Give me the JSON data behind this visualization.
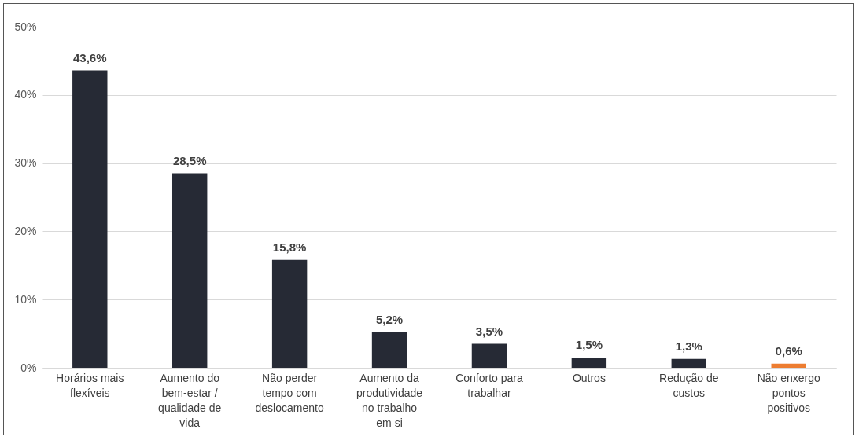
{
  "chart_data": {
    "type": "bar",
    "categories": [
      "Horários mais flexíveis",
      "Aumento do bem-estar / qualidade de vida",
      "Não perder tempo com deslocamento",
      "Aumento da produtividade no trabalho em si",
      "Conforto para trabalhar",
      "Outros",
      "Redução de custos",
      "Não enxergo pontos positivos"
    ],
    "values": [
      43.6,
      28.5,
      15.8,
      5.2,
      3.5,
      1.5,
      1.3,
      0.6
    ],
    "value_labels": [
      "43,6%",
      "28,5%",
      "15,8%",
      "5,2%",
      "3,5%",
      "1,5%",
      "1,3%",
      "0,6%"
    ],
    "colors": [
      "#262a35",
      "#262a35",
      "#262a35",
      "#262a35",
      "#262a35",
      "#262a35",
      "#262a35",
      "#ed7d31"
    ],
    "ylim": [
      0,
      50
    ],
    "yticks": [
      {
        "value": 0,
        "label": "0%"
      },
      {
        "value": 10,
        "label": "10%"
      },
      {
        "value": 20,
        "label": "20%"
      },
      {
        "value": 30,
        "label": "30%"
      },
      {
        "value": 40,
        "label": "40%"
      },
      {
        "value": 50,
        "label": "50%"
      }
    ],
    "grid": "y"
  }
}
